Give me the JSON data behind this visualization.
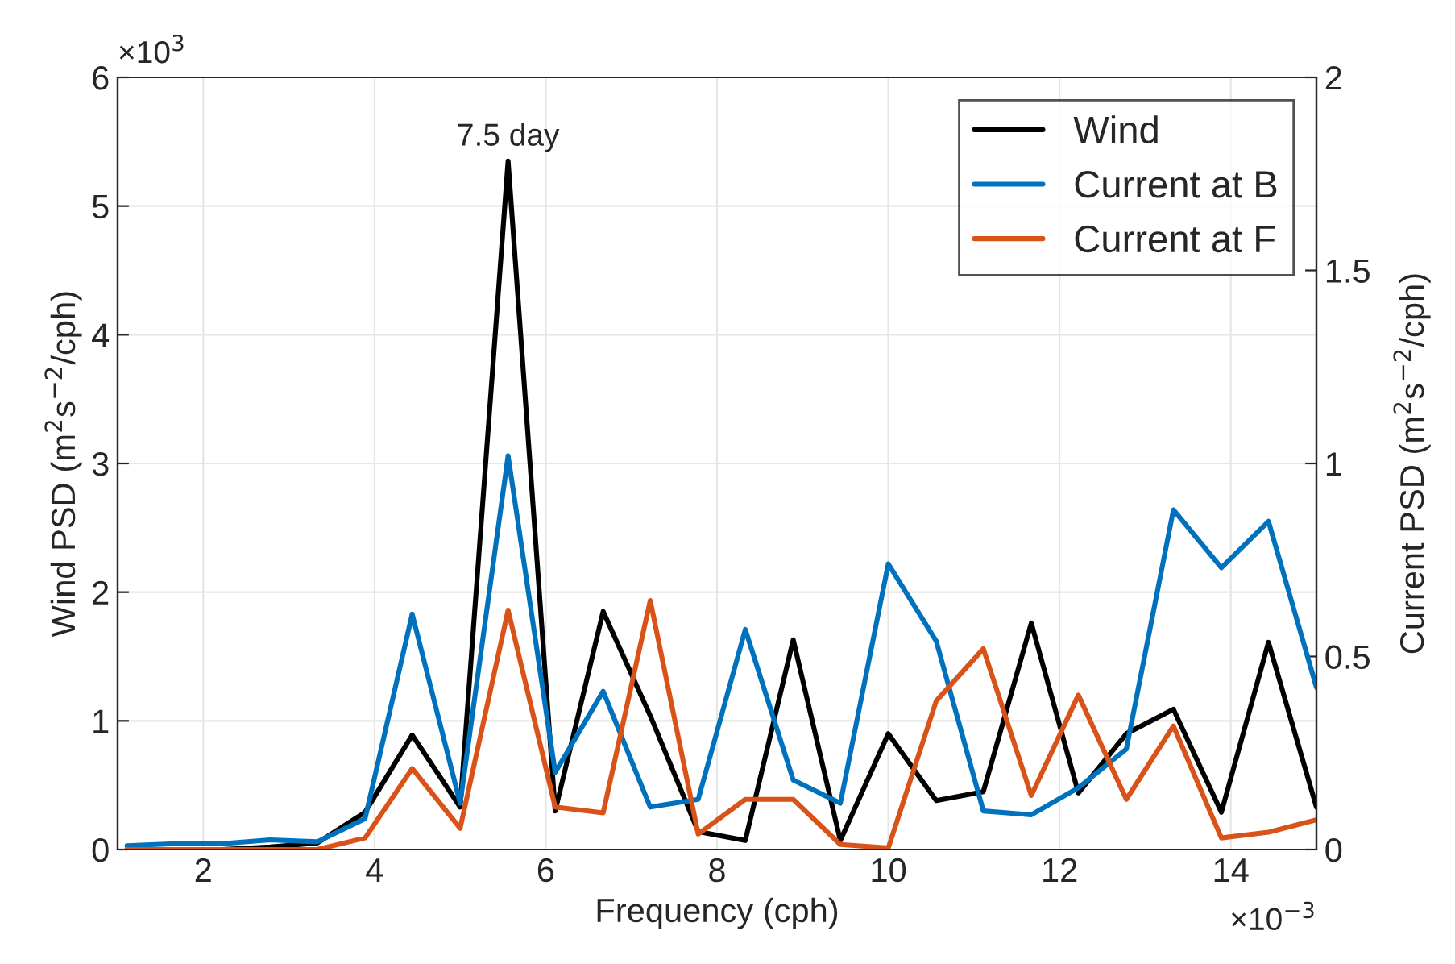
{
  "chart_data": {
    "type": "line",
    "xlabel": "Frequency (cph)",
    "ylabel": "Wind PSD (m$^{2}$s$^{−2}$/cph)",
    "y2label": "Current PSD (m$^{2}$s$^{−2}$/cph)",
    "x": [
      1.11,
      1.67,
      2.22,
      2.78,
      3.33,
      3.89,
      4.44,
      5.0,
      5.56,
      6.11,
      6.67,
      7.22,
      7.78,
      8.33,
      8.89,
      9.44,
      10.0,
      10.56,
      11.11,
      11.67,
      12.22,
      12.78,
      13.33,
      13.89,
      14.44,
      15.0
    ],
    "series": [
      {
        "name": "Wind",
        "color": "#000000",
        "values": [
          0.0,
          0.0,
          0.0,
          0.02,
          0.05,
          0.29,
          0.89,
          0.33,
          5.35,
          0.3,
          1.85,
          1.04,
          0.14,
          0.07,
          1.63,
          0.07,
          0.9,
          0.38,
          0.45,
          1.76,
          0.44,
          0.9,
          1.09,
          0.29,
          1.61,
          0.33
        ]
      },
      {
        "name": "Current at B",
        "color": "#0072bd",
        "axis": "y2",
        "values": [
          0.01,
          0.015,
          0.015,
          0.025,
          0.02,
          0.08,
          0.61,
          0.12,
          1.02,
          0.2,
          0.41,
          0.11,
          0.13,
          0.57,
          0.18,
          0.12,
          0.74,
          0.54,
          0.1,
          0.09,
          0.16,
          0.26,
          0.88,
          0.73,
          0.85,
          0.42
        ]
      },
      {
        "name": "Current at F",
        "color": "#d95319",
        "axis": "y2",
        "values": [
          0.0,
          0.0,
          0.0,
          0.0,
          0.0,
          0.03,
          0.21,
          0.055,
          0.62,
          0.11,
          0.095,
          0.645,
          0.04,
          0.13,
          0.13,
          0.013,
          0.004,
          0.385,
          0.52,
          0.14,
          0.4,
          0.13,
          0.32,
          0.03,
          0.045,
          0.077
        ]
      }
    ],
    "xlim": [
      1,
      15
    ],
    "xticks": [
      2,
      4,
      6,
      8,
      10,
      12,
      14
    ],
    "ylim": [
      0,
      6
    ],
    "yticks": [
      0,
      1,
      2,
      3,
      4,
      5,
      6
    ],
    "y2lim": [
      0,
      2
    ],
    "y2ticks": [
      0,
      0.5,
      1,
      1.5,
      2
    ],
    "annotations": [
      {
        "text": "7.5 day",
        "x": 5.56,
        "y": 5.35
      },
      "×10$^{3}$",
      "×10$^{−3}$"
    ],
    "grid": true,
    "legend": "top right",
    "line_style": "solid",
    "marker": "none"
  }
}
